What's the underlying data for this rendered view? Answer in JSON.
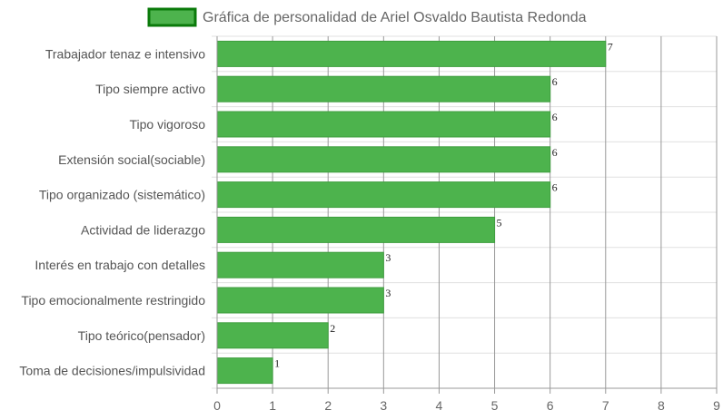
{
  "chart_data": {
    "type": "bar",
    "orientation": "horizontal",
    "title": "",
    "xlabel": "",
    "ylabel": "",
    "xlim": [
      0,
      9
    ],
    "xticks": [
      0,
      1,
      2,
      3,
      4,
      5,
      6,
      7,
      8,
      9
    ],
    "grid": true,
    "legend_position": "top",
    "categories": [
      "Trabajador tenaz e intensivo",
      "Tipo siempre activo",
      "Tipo vigoroso",
      "Extensión social(sociable)",
      "Tipo organizado (sistemático)",
      "Actividad de liderazgo",
      "Interés en trabajo con detalles",
      "Tipo emocionalmente restringido",
      "Tipo teórico(pensador)",
      "Toma de decisiones/impulsividad"
    ],
    "series": [
      {
        "name": "Gráfica de personalidad de Ariel Osvaldo Bautista Redonda",
        "values": [
          7,
          6,
          6,
          6,
          6,
          5,
          3,
          3,
          2,
          1
        ]
      }
    ],
    "colors": {
      "bar_fill": "#4db34d",
      "bar_border": "#3f9e3f",
      "legend_fill": "#4db34d",
      "legend_border": "#0a7a0a",
      "grid_major": "#999999",
      "grid_minor": "#e0e0e0",
      "axis": "#999999"
    }
  }
}
